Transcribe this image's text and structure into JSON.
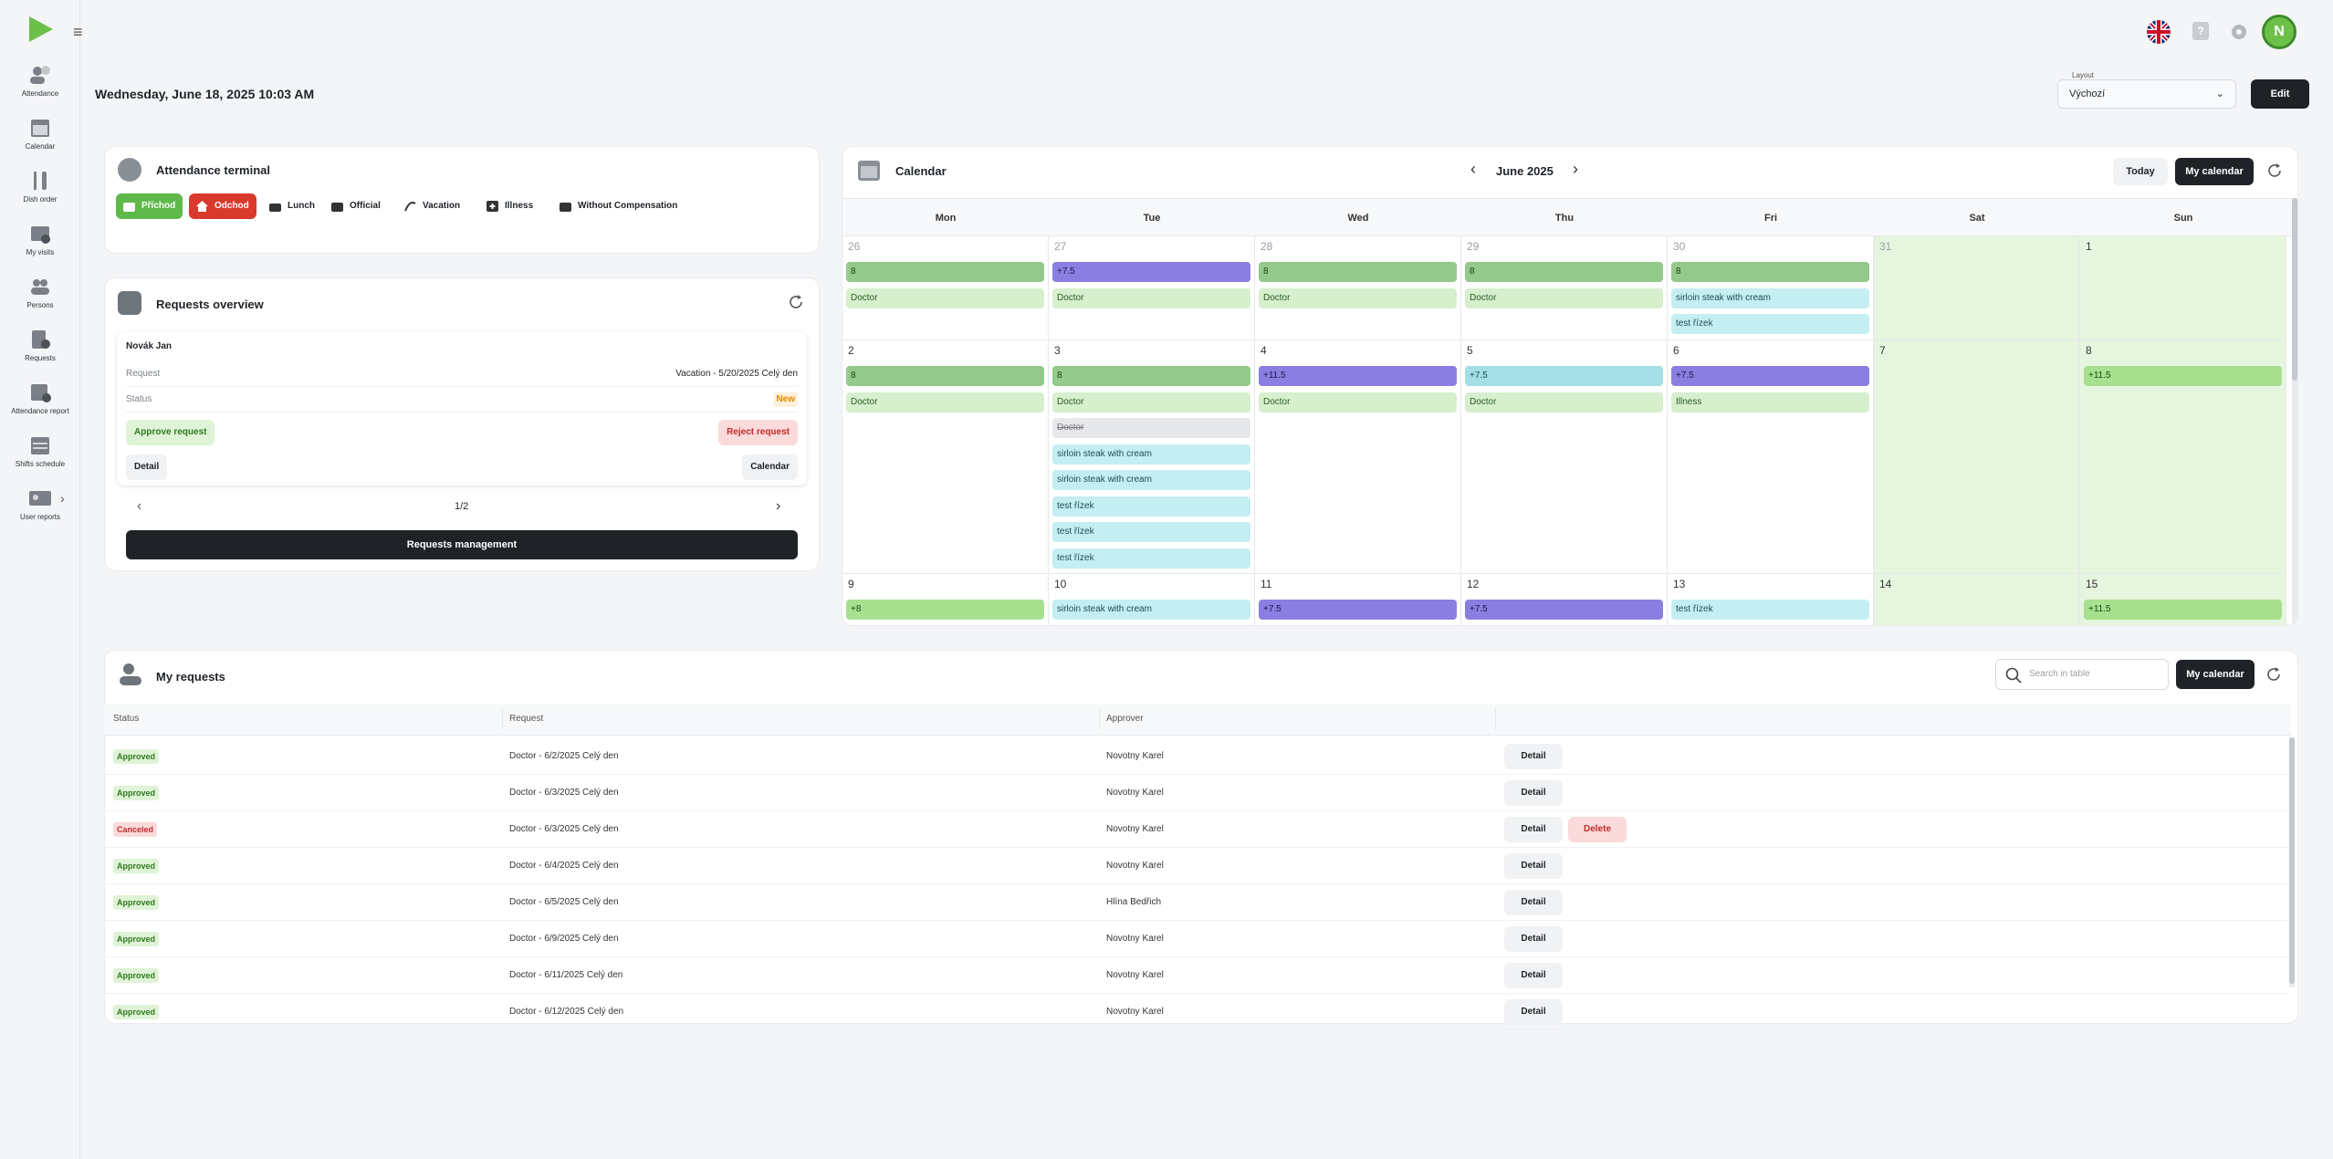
{
  "sidebar": {
    "items": [
      {
        "label": "Attendance",
        "icon": "attendance-icon"
      },
      {
        "label": "Calendar",
        "icon": "calendar-icon"
      },
      {
        "label": "Dish order",
        "icon": "dish-order-icon"
      },
      {
        "label": "My visits",
        "icon": "my-visits-icon"
      },
      {
        "label": "Persons",
        "icon": "persons-icon"
      },
      {
        "label": "Requests",
        "icon": "requests-icon"
      },
      {
        "label": "Attendance report",
        "icon": "attendance-report-icon"
      },
      {
        "label": "Shifts schedule",
        "icon": "shifts-schedule-icon"
      },
      {
        "label": "User reports",
        "icon": "user-reports-icon"
      }
    ]
  },
  "header": {
    "datetime": "Wednesday, June 18, 2025 10:03 AM",
    "layout_label": "Layout",
    "layout_value": "Výchozí",
    "edit_label": "Edit",
    "help_label": "?",
    "avatar_initial": "N"
  },
  "terminal": {
    "title": "Attendance terminal",
    "buttons": [
      {
        "label": "Příchod",
        "icon": "arrival-icon",
        "style": "green"
      },
      {
        "label": "Odchod",
        "icon": "departure-icon",
        "style": "red"
      },
      {
        "label": "Lunch",
        "icon": "lunch-icon",
        "style": "plain"
      },
      {
        "label": "Official",
        "icon": "official-icon",
        "style": "plain"
      },
      {
        "label": "Vacation",
        "icon": "vacation-icon",
        "style": "plain"
      },
      {
        "label": "Illness",
        "icon": "illness-icon",
        "style": "plain"
      },
      {
        "label": "Without Compensation",
        "icon": "without-compensation-icon",
        "style": "plain"
      }
    ]
  },
  "requests_overview": {
    "title": "Requests overview",
    "person": "Novák Jan",
    "request_key": "Request",
    "request_value": "Vacation - 5/20/2025 Celý den",
    "status_key": "Status",
    "status_value": "New",
    "approve_label": "Approve request",
    "reject_label": "Reject request",
    "detail_label": "Detail",
    "calendar_label": "Calendar",
    "pager": "1/2",
    "management_label": "Requests management"
  },
  "calendar": {
    "title": "Calendar",
    "month": "June 2025",
    "today_label": "Today",
    "my_calendar_label": "My calendar",
    "days": [
      "Mon",
      "Tue",
      "Wed",
      "Thu",
      "Fri",
      "Sat",
      "Sun"
    ],
    "weeks": [
      [
        {
          "d": "26",
          "dim": true,
          "ev": [
            [
              "8",
              "green"
            ],
            [
              "Doctor",
              "lgreen"
            ]
          ]
        },
        {
          "d": "27",
          "dim": true,
          "ev": [
            [
              "+7.5",
              "purple"
            ],
            [
              "Doctor",
              "lgreen"
            ]
          ]
        },
        {
          "d": "28",
          "dim": true,
          "ev": [
            [
              "8",
              "green"
            ],
            [
              "Doctor",
              "lgreen"
            ]
          ]
        },
        {
          "d": "29",
          "dim": true,
          "ev": [
            [
              "8",
              "green"
            ],
            [
              "Doctor",
              "lgreen"
            ]
          ]
        },
        {
          "d": "30",
          "dim": true,
          "ev": [
            [
              "8",
              "green"
            ],
            [
              "sirloin steak with cream",
              "cyan"
            ],
            [
              "test řízek",
              "cyan"
            ]
          ]
        },
        {
          "d": "31",
          "dim": true,
          "we": true,
          "ev": []
        },
        {
          "d": "1",
          "we": true,
          "ev": []
        }
      ],
      [
        {
          "d": "2",
          "ev": [
            [
              "8",
              "green"
            ],
            [
              "Doctor",
              "lgreen"
            ]
          ]
        },
        {
          "d": "3",
          "ev": [
            [
              "8",
              "green"
            ],
            [
              "Doctor",
              "lgreen"
            ],
            [
              "Doctor",
              "grey"
            ],
            [
              "sirloin steak with cream",
              "cyan"
            ],
            [
              "sirloin steak with cream",
              "cyan"
            ],
            [
              "test řízek",
              "cyan"
            ],
            [
              "test řízek",
              "cyan"
            ],
            [
              "test řízek",
              "cyan"
            ]
          ]
        },
        {
          "d": "4",
          "ev": [
            [
              "+11.5",
              "purple"
            ],
            [
              "Doctor",
              "lgreen"
            ]
          ]
        },
        {
          "d": "5",
          "ev": [
            [
              "+7.5",
              "teal"
            ],
            [
              "Doctor",
              "lgreen"
            ]
          ]
        },
        {
          "d": "6",
          "ev": [
            [
              "+7.5",
              "purple"
            ],
            [
              "Illness",
              "lgreen"
            ]
          ]
        },
        {
          "d": "7",
          "we": true,
          "ev": []
        },
        {
          "d": "8",
          "we": true,
          "ev": [
            [
              "+11.5",
              "bgreen"
            ]
          ]
        }
      ],
      [
        {
          "d": "9",
          "ev": [
            [
              "+8",
              "bgreen"
            ]
          ]
        },
        {
          "d": "10",
          "ev": [
            [
              "sirloin steak with cream",
              "cyan"
            ]
          ]
        },
        {
          "d": "11",
          "ev": [
            [
              "+7.5",
              "purple"
            ]
          ]
        },
        {
          "d": "12",
          "ev": [
            [
              "+7.5",
              "purple"
            ]
          ]
        },
        {
          "d": "13",
          "ev": [
            [
              "test řízek",
              "cyan"
            ]
          ]
        },
        {
          "d": "14",
          "we": true,
          "ev": []
        },
        {
          "d": "15",
          "we": true,
          "ev": [
            [
              "+11.5",
              "bgreen"
            ]
          ]
        }
      ]
    ]
  },
  "my_requests": {
    "title": "My requests",
    "search_placeholder": "Search in table",
    "my_calendar_label": "My calendar",
    "columns": [
      "Status",
      "Request",
      "Approver"
    ],
    "rows": [
      {
        "status": "Approved",
        "request": "Doctor - 6/2/2025 Celý den",
        "approver": "Novotny Karel",
        "detail": "Detail"
      },
      {
        "status": "Approved",
        "request": "Doctor - 6/3/2025 Celý den",
        "approver": "Novotny Karel",
        "detail": "Detail"
      },
      {
        "status": "Canceled",
        "request": "Doctor - 6/3/2025 Celý den",
        "approver": "Novotny Karel",
        "detail": "Detail",
        "delete": "Delete"
      },
      {
        "status": "Approved",
        "request": "Doctor - 6/4/2025 Celý den",
        "approver": "Novotny Karel",
        "detail": "Detail"
      },
      {
        "status": "Approved",
        "request": "Doctor - 6/5/2025 Celý den",
        "approver": "Hlína Bedřich",
        "detail": "Detail"
      },
      {
        "status": "Approved",
        "request": "Doctor - 6/9/2025 Celý den",
        "approver": "Novotny Karel",
        "detail": "Detail"
      },
      {
        "status": "Approved",
        "request": "Doctor - 6/11/2025 Celý den",
        "approver": "Novotny Karel",
        "detail": "Detail"
      },
      {
        "status": "Approved",
        "request": "Doctor - 6/12/2025 Celý den",
        "approver": "Novotny Karel",
        "detail": "Detail"
      }
    ]
  },
  "colors": {
    "accent_dark": "#1f2328",
    "arrival_green": "#5fb84a",
    "departure_red": "#d93a2b",
    "approved_green": "#2f7a1f",
    "canceled_red": "#c22b2b",
    "status_new": "#e08a00"
  }
}
